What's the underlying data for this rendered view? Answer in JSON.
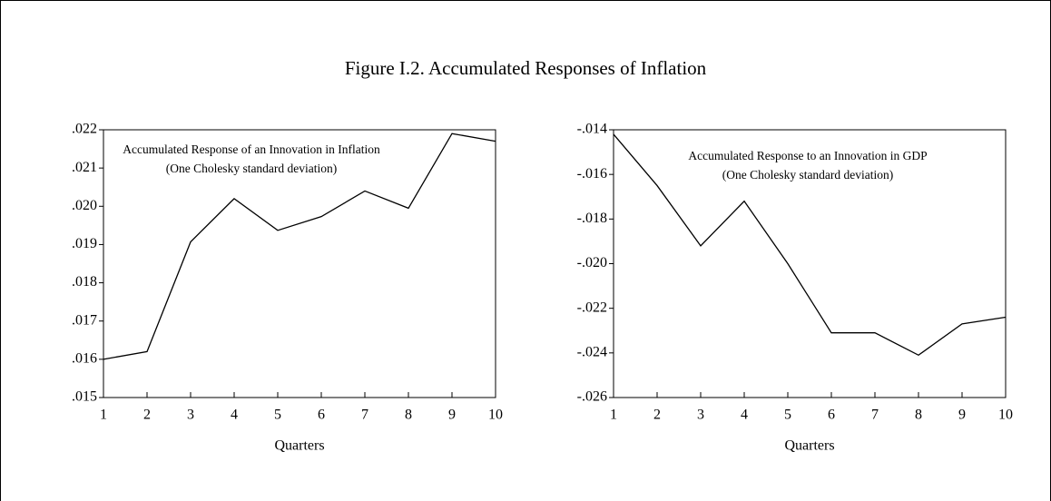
{
  "title": "Figure I.2. Accumulated Responses of Inflation",
  "chart_data": [
    {
      "type": "line",
      "annotations": [
        "Accumulated Response of an Innovation in Inflation",
        "(One Cholesky standard deviation)"
      ],
      "xlabel": "Quarters",
      "x": [
        1,
        2,
        3,
        4,
        5,
        6,
        7,
        8,
        9,
        10
      ],
      "xlim": [
        1,
        10
      ],
      "xticks": [
        1,
        2,
        3,
        4,
        5,
        6,
        7,
        8,
        9,
        10
      ],
      "series": [
        {
          "color": "#000000",
          "values": [
            0.016,
            0.0162,
            0.01907,
            0.0202,
            0.01937,
            0.01973,
            0.0204,
            0.01995,
            0.0219,
            0.0217
          ]
        }
      ],
      "ylim": [
        0.015,
        0.022
      ],
      "yticks": [
        {
          "value": 0.015,
          "label": ".015"
        },
        {
          "value": 0.016,
          "label": ".016"
        },
        {
          "value": 0.017,
          "label": ".017"
        },
        {
          "value": 0.018,
          "label": ".018"
        },
        {
          "value": 0.019,
          "label": ".019"
        },
        {
          "value": 0.02,
          "label": ".020"
        },
        {
          "value": 0.021,
          "label": ".021"
        },
        {
          "value": 0.022,
          "label": ".022"
        }
      ],
      "grid": false
    },
    {
      "type": "line",
      "annotations": [
        "Accumulated Response to an Innovation in GDP",
        "(One Cholesky standard deviation)"
      ],
      "xlabel": "Quarters",
      "x": [
        1,
        2,
        3,
        4,
        5,
        6,
        7,
        8,
        9,
        10
      ],
      "xlim": [
        1,
        10
      ],
      "xticks": [
        1,
        2,
        3,
        4,
        5,
        6,
        7,
        8,
        9,
        10
      ],
      "series": [
        {
          "color": "#000000",
          "values": [
            -0.0142,
            -0.0165,
            -0.0192,
            -0.0172,
            -0.02,
            -0.0231,
            -0.0231,
            -0.0241,
            -0.0227,
            -0.0224
          ]
        }
      ],
      "ylim": [
        -0.026,
        -0.014
      ],
      "yticks": [
        {
          "value": -0.026,
          "label": "-.026"
        },
        {
          "value": -0.024,
          "label": "-.024"
        },
        {
          "value": -0.022,
          "label": "-.022"
        },
        {
          "value": -0.02,
          "label": "-.020"
        },
        {
          "value": -0.018,
          "label": "-.018"
        },
        {
          "value": -0.016,
          "label": "-.016"
        },
        {
          "value": -0.014,
          "label": "-.014"
        }
      ],
      "grid": false
    }
  ]
}
